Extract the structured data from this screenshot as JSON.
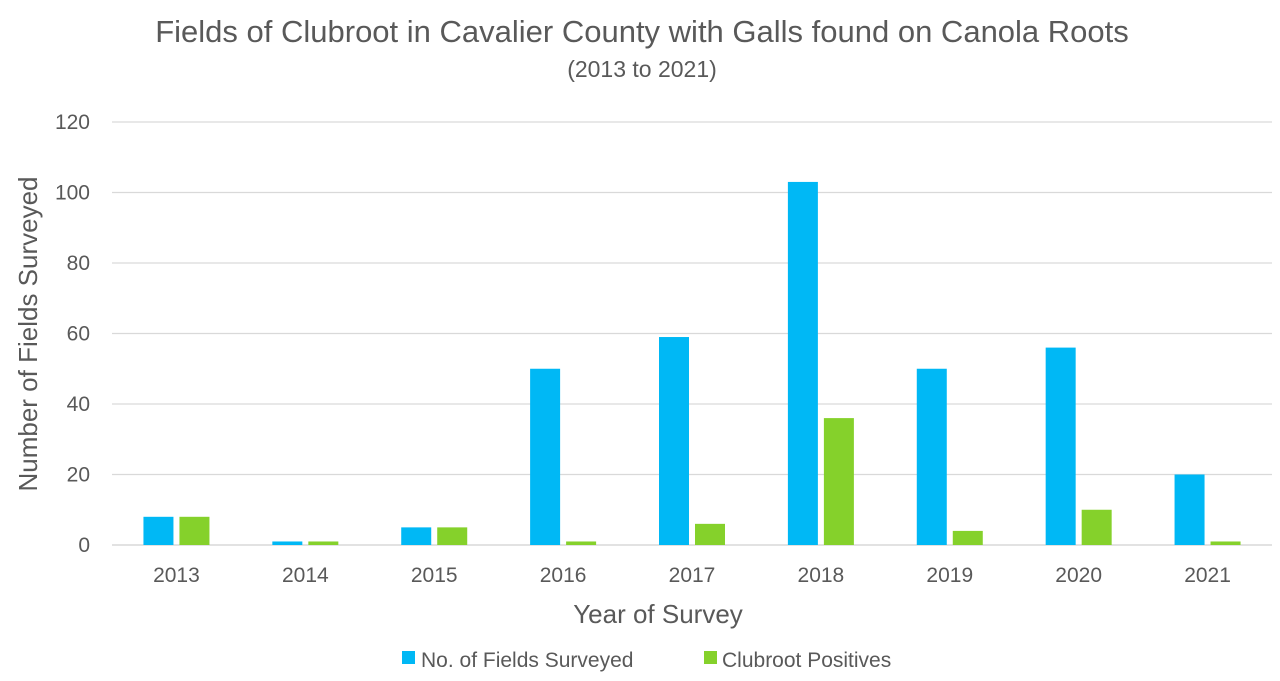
{
  "chart_data": {
    "type": "bar",
    "title": "Fields of Clubroot in Cavalier County with Galls found on Canola Roots",
    "subtitle": "(2013 to 2021)",
    "xlabel": "Year of Survey",
    "ylabel": "Number of Fields Surveyed",
    "categories": [
      "2013",
      "2014",
      "2015",
      "2016",
      "2017",
      "2018",
      "2019",
      "2020",
      "2021"
    ],
    "ylim": [
      0,
      120
    ],
    "yticks": [
      0,
      20,
      40,
      60,
      80,
      100,
      120
    ],
    "grid": true,
    "legend_position": "bottom",
    "series": [
      {
        "name": "No. of Fields Surveyed",
        "color": "#00b8f5",
        "values": [
          8,
          1,
          5,
          50,
          59,
          103,
          50,
          56,
          20
        ]
      },
      {
        "name": "Clubroot Positives",
        "color": "#85d12b",
        "values": [
          8,
          1,
          5,
          1,
          6,
          36,
          4,
          10,
          1
        ]
      }
    ]
  }
}
